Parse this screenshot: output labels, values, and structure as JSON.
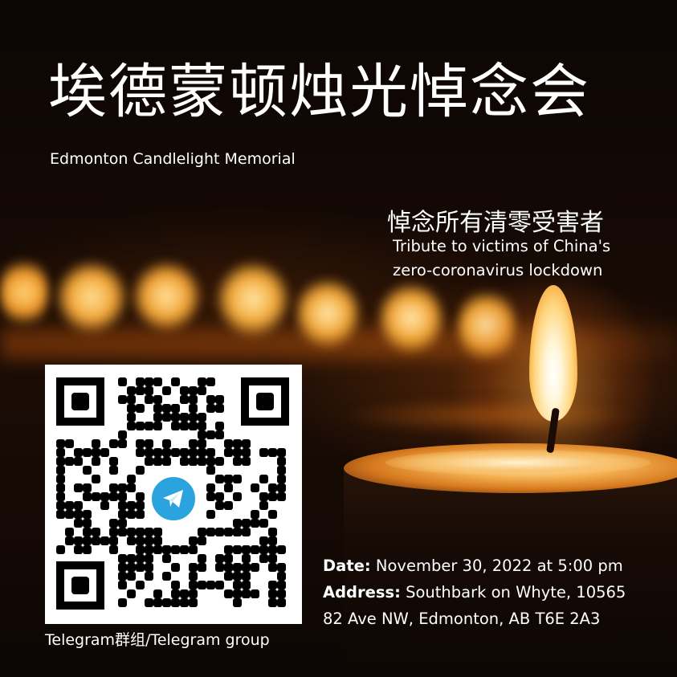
{
  "title_zh": "埃德蒙顿烛光悼念会",
  "title_en": "Edmonton Candlelight Memorial",
  "tribute_zh": "悼念所有清零受害者",
  "tribute_en_line1": "Tribute to victims of China's",
  "tribute_en_line2": "zero-coronavirus lockdown",
  "event": {
    "date_label": "Date:",
    "date_value": " November 30, 2022 at 5:00 pm",
    "address_label": "Address:",
    "address_value_line1": " Southbark on Whyte, 10565",
    "address_value_line2": "82 Ave NW, Edmonton, AB T6E 2A3"
  },
  "qr": {
    "caption": "Telegram群组/Telegram group",
    "center_icon": "telegram-icon",
    "icon_color": "#2aa3de"
  }
}
